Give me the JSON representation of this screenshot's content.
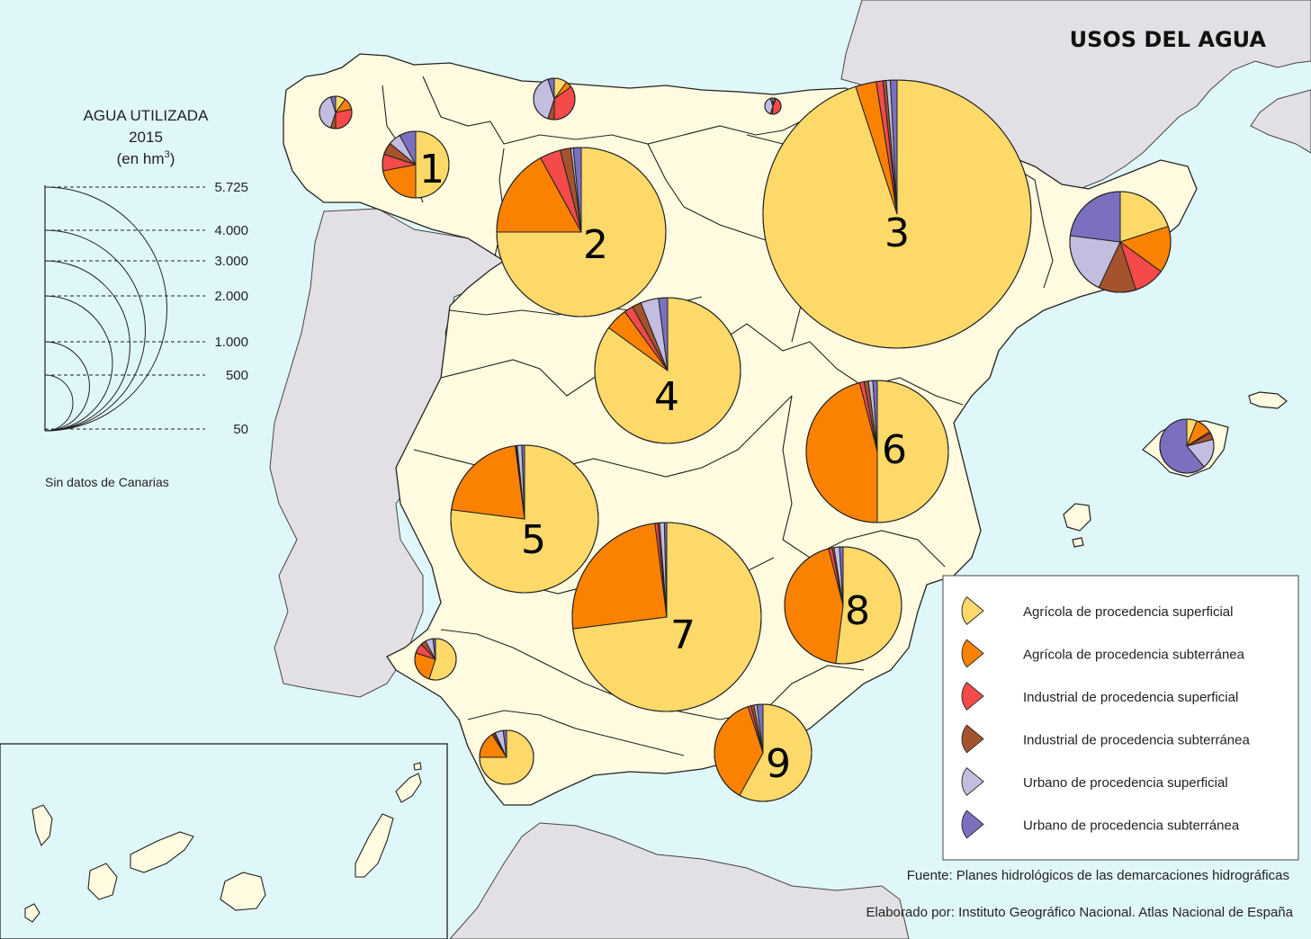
{
  "map": {
    "title": "USOS DEL AGUA",
    "scale": {
      "title_line1": "AGUA UTILIZADA",
      "title_line2": "2015",
      "title_line3": "(en hm",
      "title_sup": "3",
      "title_close": ")",
      "values": [
        "5.725",
        "4.000",
        "3.000",
        "2.000",
        "1.000",
        "500",
        "50"
      ],
      "note": "Sin datos de Canarias"
    },
    "legend": [
      {
        "label": "Agrícola de procedencia superficial",
        "color": "#fdd96a"
      },
      {
        "label": "Agrícola de procedencia subterránea",
        "color": "#fb8200"
      },
      {
        "label": "Industrial de procedencia superficial",
        "color": "#f44a4a"
      },
      {
        "label": "Industrial de procedencia subterránea",
        "color": "#a5532d"
      },
      {
        "label": "Urbano de procedencia superficial",
        "color": "#c3bedf"
      },
      {
        "label": "Urbano de procedencia subterránea",
        "color": "#7b70bf"
      }
    ],
    "region_numbers": [
      "1",
      "2",
      "3",
      "4",
      "5",
      "6",
      "7",
      "8",
      "9"
    ],
    "source": "Fuente: Planes hidrológicos de las demarcaciones hidrográficas",
    "credit": "Elaborado por: Instituto Geográfico Nacional. Atlas Nacional de España",
    "colors": {
      "sea": "#e0f7fa",
      "spain_land": "#fffbe0",
      "other_land": "#e2e0e4",
      "border": "#000000"
    }
  }
}
